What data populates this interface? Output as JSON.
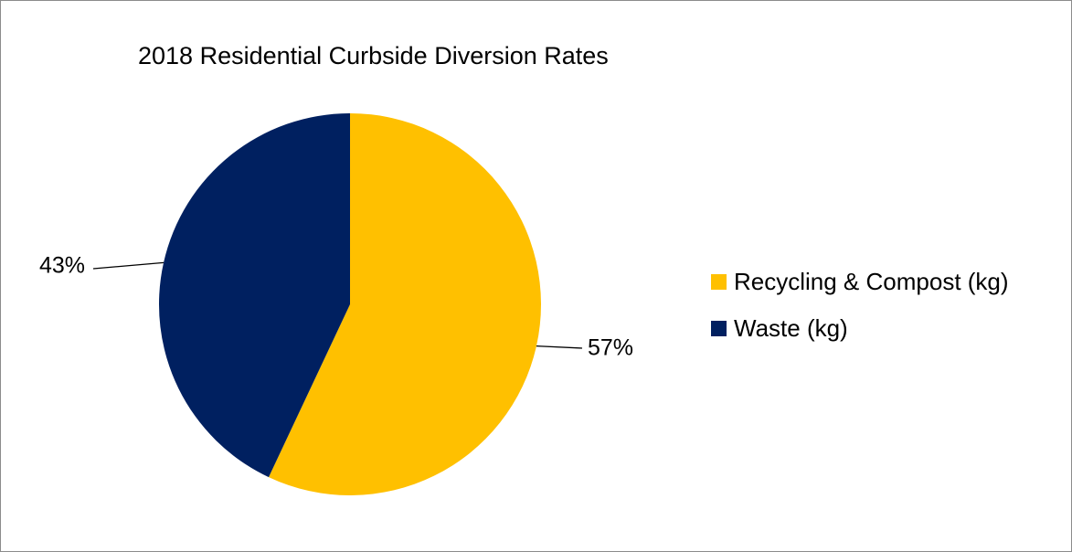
{
  "chart_data": {
    "type": "pie",
    "title": "2018 Residential Curbside Diversion Rates",
    "slices": [
      {
        "name": "Recycling & Compost (kg)",
        "value": 57,
        "label": "57%",
        "color": "#FFC000"
      },
      {
        "name": "Waste (kg)",
        "value": 43,
        "label": "43%",
        "color": "#002060"
      }
    ],
    "start_angle_deg": 0,
    "direction": "clockwise",
    "legend": {
      "position": "right"
    }
  }
}
